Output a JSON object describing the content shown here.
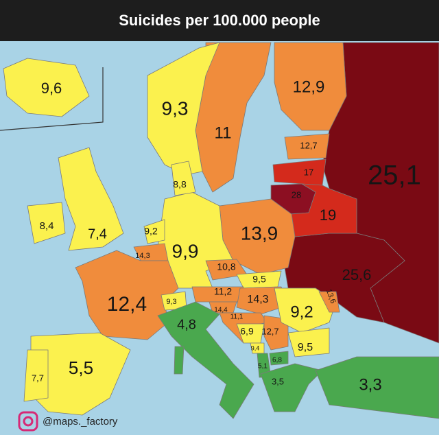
{
  "title": "Suicides per 100.000 people",
  "regions": [
    {
      "label": "9,6"
    },
    {
      "label": "9,3"
    },
    {
      "label": "11"
    },
    {
      "label": "12,9"
    },
    {
      "label": "12,7"
    },
    {
      "label": "17"
    },
    {
      "label": "28"
    },
    {
      "label": "25,1"
    },
    {
      "label": "19"
    },
    {
      "label": "8,8"
    },
    {
      "label": "8,4"
    },
    {
      "label": "7,4"
    },
    {
      "label": "9,2"
    },
    {
      "label": "14,3"
    },
    {
      "label": "9,9"
    },
    {
      "label": "13,9"
    },
    {
      "label": "10,8"
    },
    {
      "label": "9,5"
    },
    {
      "label": "25,6"
    },
    {
      "label": "13,6"
    },
    {
      "label": "11,2"
    },
    {
      "label": "14,3"
    },
    {
      "label": "12,4"
    },
    {
      "label": "9,3"
    },
    {
      "label": "14,4"
    },
    {
      "label": "11,1"
    },
    {
      "label": "9,2"
    },
    {
      "label": "4,8"
    },
    {
      "label": "6,9"
    },
    {
      "label": "12,7"
    },
    {
      "label": "9,4"
    },
    {
      "label": "6,8"
    },
    {
      "label": "5,1"
    },
    {
      "label": "9,5"
    },
    {
      "label": "3,5"
    },
    {
      "label": "3,3"
    },
    {
      "label": "5,5"
    },
    {
      "label": "7,7"
    }
  ],
  "credit": "@maps._factory"
}
